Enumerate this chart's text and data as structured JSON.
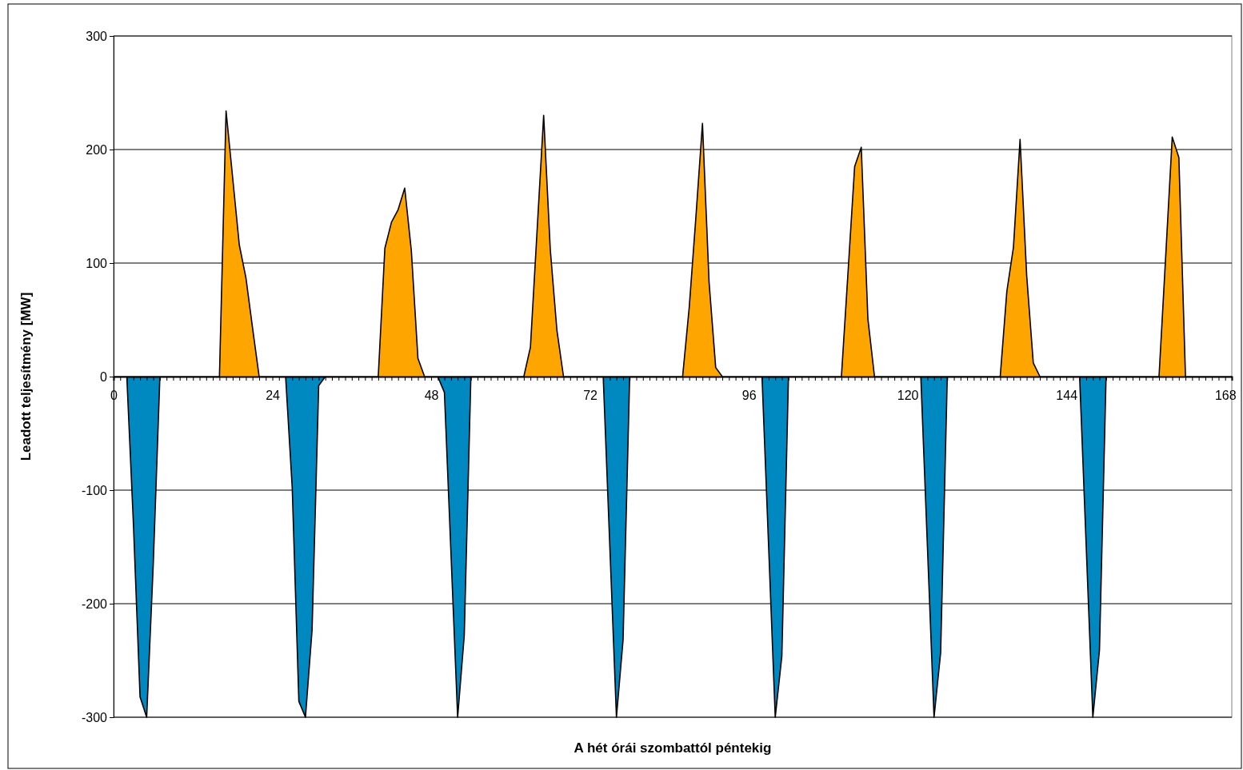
{
  "chart_data": {
    "type": "area",
    "xlabel": "A hét órái szombattól péntekig",
    "ylabel": "Leadott teljesítmény [MW]",
    "xlim": [
      0,
      169
    ],
    "ylim": [
      -300,
      300
    ],
    "yticks": [
      -300,
      -200,
      -100,
      0,
      100,
      200,
      300
    ],
    "grid": "y",
    "xticks": [
      0,
      {
        "value": 1,
        "label": null
      },
      {
        "value": 2,
        "label": null
      },
      {
        "value": 3,
        "label": null
      },
      {
        "value": 4,
        "label": null
      },
      {
        "value": 5,
        "label": null
      },
      {
        "value": 6,
        "label": null
      },
      {
        "value": 7,
        "label": null
      },
      {
        "value": 8,
        "label": null
      },
      {
        "value": 9,
        "label": null
      },
      {
        "value": 10,
        "label": null
      },
      {
        "value": 11,
        "label": null
      },
      {
        "value": 12,
        "label": null
      },
      {
        "value": 13,
        "label": null
      },
      {
        "value": 14,
        "label": null
      },
      {
        "value": 15,
        "label": null
      },
      {
        "value": 16,
        "label": null
      },
      {
        "value": 17,
        "label": null
      },
      {
        "value": 18,
        "label": null
      },
      {
        "value": 19,
        "label": null
      },
      {
        "value": 20,
        "label": null
      },
      {
        "value": 21,
        "label": null
      },
      {
        "value": 22,
        "label": null
      },
      {
        "value": 23,
        "label": null
      },
      24,
      {
        "value": 25,
        "label": null
      },
      {
        "value": 26,
        "label": null
      },
      {
        "value": 27,
        "label": null
      },
      {
        "value": 28,
        "label": null
      },
      {
        "value": 29,
        "label": null
      },
      {
        "value": 30,
        "label": null
      },
      {
        "value": 31,
        "label": null
      },
      {
        "value": 32,
        "label": null
      },
      {
        "value": 33,
        "label": null
      },
      {
        "value": 34,
        "label": null
      },
      {
        "value": 35,
        "label": null
      },
      {
        "value": 36,
        "label": null
      },
      {
        "value": 37,
        "label": null
      },
      {
        "value": 38,
        "label": null
      },
      {
        "value": 39,
        "label": null
      },
      {
        "value": 40,
        "label": null
      },
      {
        "value": 41,
        "label": null
      },
      {
        "value": 42,
        "label": null
      },
      {
        "value": 43,
        "label": null
      },
      {
        "value": 44,
        "label": null
      },
      {
        "value": 45,
        "label": null
      },
      {
        "value": 46,
        "label": null
      },
      {
        "value": 47,
        "label": null
      },
      48,
      {
        "value": 49,
        "label": null
      },
      {
        "value": 50,
        "label": null
      },
      {
        "value": 51,
        "label": null
      },
      {
        "value": 52,
        "label": null
      },
      {
        "value": 53,
        "label": null
      },
      {
        "value": 54,
        "label": null
      },
      {
        "value": 55,
        "label": null
      },
      {
        "value": 56,
        "label": null
      },
      {
        "value": 57,
        "label": null
      },
      {
        "value": 58,
        "label": null
      },
      {
        "value": 59,
        "label": null
      },
      {
        "value": 60,
        "label": null
      },
      {
        "value": 61,
        "label": null
      },
      {
        "value": 62,
        "label": null
      },
      {
        "value": 63,
        "label": null
      },
      {
        "value": 64,
        "label": null
      },
      {
        "value": 65,
        "label": null
      },
      {
        "value": 66,
        "label": null
      },
      {
        "value": 67,
        "label": null
      },
      {
        "value": 68,
        "label": null
      },
      {
        "value": 69,
        "label": null
      },
      {
        "value": 70,
        "label": null
      },
      {
        "value": 71,
        "label": null
      },
      72,
      {
        "value": 73,
        "label": null
      },
      {
        "value": 74,
        "label": null
      },
      {
        "value": 75,
        "label": null
      },
      {
        "value": 76,
        "label": null
      },
      {
        "value": 77,
        "label": null
      },
      {
        "value": 78,
        "label": null
      },
      {
        "value": 79,
        "label": null
      },
      {
        "value": 80,
        "label": null
      },
      {
        "value": 81,
        "label": null
      },
      {
        "value": 82,
        "label": null
      },
      {
        "value": 83,
        "label": null
      },
      {
        "value": 84,
        "label": null
      },
      {
        "value": 85,
        "label": null
      },
      {
        "value": 86,
        "label": null
      },
      {
        "value": 87,
        "label": null
      },
      {
        "value": 88,
        "label": null
      },
      {
        "value": 89,
        "label": null
      },
      {
        "value": 90,
        "label": null
      },
      {
        "value": 91,
        "label": null
      },
      {
        "value": 92,
        "label": null
      },
      {
        "value": 93,
        "label": null
      },
      {
        "value": 94,
        "label": null
      },
      {
        "value": 95,
        "label": null
      },
      96,
      {
        "value": 97,
        "label": null
      },
      {
        "value": 98,
        "label": null
      },
      {
        "value": 99,
        "label": null
      },
      {
        "value": 100,
        "label": null
      },
      {
        "value": 101,
        "label": null
      },
      {
        "value": 102,
        "label": null
      },
      {
        "value": 103,
        "label": null
      },
      {
        "value": 104,
        "label": null
      },
      {
        "value": 105,
        "label": null
      },
      {
        "value": 106,
        "label": null
      },
      {
        "value": 107,
        "label": null
      },
      {
        "value": 108,
        "label": null
      },
      {
        "value": 109,
        "label": null
      },
      {
        "value": 110,
        "label": null
      },
      {
        "value": 111,
        "label": null
      },
      {
        "value": 112,
        "label": null
      },
      {
        "value": 113,
        "label": null
      },
      {
        "value": 114,
        "label": null
      },
      {
        "value": 115,
        "label": null
      },
      {
        "value": 116,
        "label": null
      },
      {
        "value": 117,
        "label": null
      },
      {
        "value": 118,
        "label": null
      },
      {
        "value": 119,
        "label": null
      },
      120,
      {
        "value": 121,
        "label": null
      },
      {
        "value": 122,
        "label": null
      },
      {
        "value": 123,
        "label": null
      },
      {
        "value": 124,
        "label": null
      },
      {
        "value": 125,
        "label": null
      },
      {
        "value": 126,
        "label": null
      },
      {
        "value": 127,
        "label": null
      },
      {
        "value": 128,
        "label": null
      },
      {
        "value": 129,
        "label": null
      },
      {
        "value": 130,
        "label": null
      },
      {
        "value": 131,
        "label": null
      },
      {
        "value": 132,
        "label": null
      },
      {
        "value": 133,
        "label": null
      },
      {
        "value": 134,
        "label": null
      },
      {
        "value": 135,
        "label": null
      },
      {
        "value": 136,
        "label": null
      },
      {
        "value": 137,
        "label": null
      },
      {
        "value": 138,
        "label": null
      },
      {
        "value": 139,
        "label": null
      },
      {
        "value": 140,
        "label": null
      },
      {
        "value": 141,
        "label": null
      },
      {
        "value": 142,
        "label": null
      },
      {
        "value": 143,
        "label": null
      },
      144,
      {
        "value": 145,
        "label": null
      },
      {
        "value": 146,
        "label": null
      },
      {
        "value": 147,
        "label": null
      },
      {
        "value": 148,
        "label": null
      },
      {
        "value": 149,
        "label": null
      },
      {
        "value": 150,
        "label": null
      },
      {
        "value": 151,
        "label": null
      },
      {
        "value": 152,
        "label": null
      },
      {
        "value": 153,
        "label": null
      },
      {
        "value": 154,
        "label": null
      },
      {
        "value": 155,
        "label": null
      },
      {
        "value": 156,
        "label": null
      },
      {
        "value": 157,
        "label": null
      },
      {
        "value": 158,
        "label": null
      },
      {
        "value": 159,
        "label": null
      },
      {
        "value": 160,
        "label": null
      },
      {
        "value": 161,
        "label": null
      },
      {
        "value": 162,
        "label": null
      },
      {
        "value": 163,
        "label": null
      },
      {
        "value": 164,
        "label": null
      },
      {
        "value": 165,
        "label": null
      },
      {
        "value": 166,
        "label": null
      },
      {
        "value": 167,
        "label": null
      },
      168
    ],
    "series": [
      {
        "color": "#ffa500",
        "x": [
          16,
          17,
          18,
          19,
          20,
          21,
          22,
          24,
          40,
          41,
          42,
          43,
          44,
          45,
          46,
          47,
          48,
          62,
          63,
          64,
          65,
          66,
          67,
          68,
          71,
          86,
          87,
          88,
          89,
          90,
          91,
          92,
          95,
          110,
          111,
          112,
          113,
          114,
          115,
          118,
          134,
          135,
          136,
          137,
          138,
          139,
          140,
          143,
          158,
          159,
          160,
          161,
          162
        ],
        "values": [
          0,
          234,
          175,
          116,
          87,
          43,
          0,
          null,
          0,
          113,
          136,
          147,
          166,
          111,
          16,
          0,
          null,
          0,
          26,
          128,
          230,
          112,
          41,
          0,
          null,
          0,
          61,
          140,
          223,
          83,
          8,
          0,
          null,
          0,
          92,
          185,
          202,
          51,
          0,
          null,
          0,
          75,
          114,
          209,
          89,
          12,
          0,
          null,
          0,
          105,
          211,
          193,
          0
        ]
      },
      {
        "color": "#0088c0",
        "x": [
          2,
          3,
          4,
          5,
          6,
          7,
          11,
          26,
          27,
          28,
          29,
          30,
          31,
          32,
          36,
          49,
          50,
          51,
          52,
          53,
          54,
          58,
          74,
          75,
          76,
          77,
          78,
          82,
          98,
          99,
          100,
          101,
          102,
          106,
          122,
          123,
          124,
          125,
          126,
          130,
          146,
          147,
          148,
          149,
          150
        ],
        "values": [
          0,
          -130,
          -282,
          -300,
          -165,
          0,
          null,
          0,
          -98,
          -286,
          -300,
          -223,
          -8,
          0,
          null,
          0,
          -14,
          -157,
          -300,
          -228,
          0,
          null,
          0,
          -150,
          -300,
          -232,
          0,
          null,
          0,
          -150,
          -300,
          -246,
          0,
          null,
          0,
          -150,
          -300,
          -243,
          0,
          null,
          0,
          -150,
          -300,
          -241,
          0
        ]
      }
    ]
  }
}
